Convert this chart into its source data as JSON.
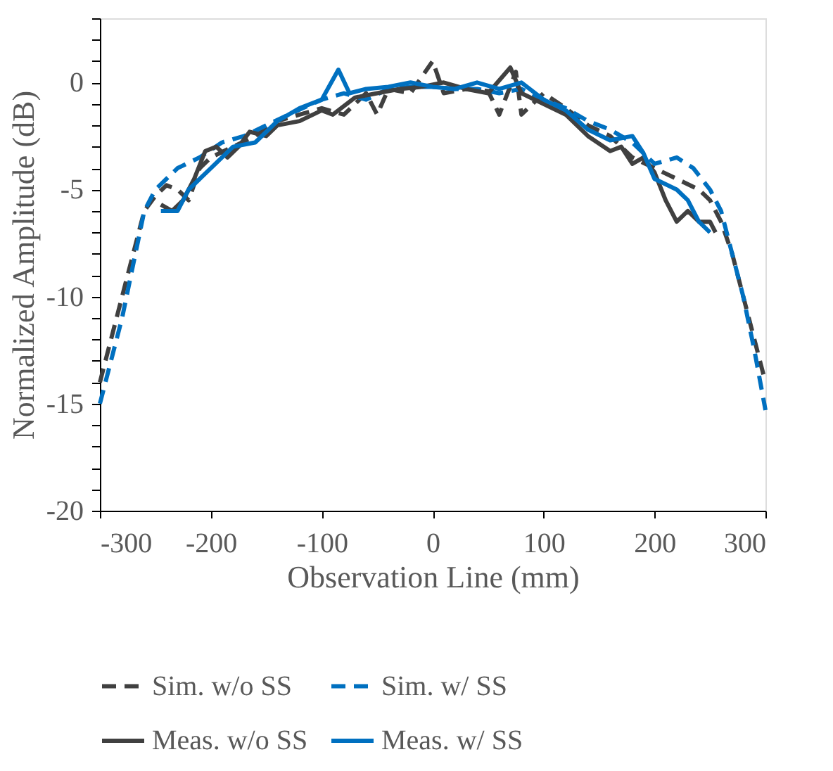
{
  "chart_data": {
    "type": "line",
    "xlabel": "Observation Line (mm)",
    "ylabel": "Normalized Amplitude (dB)",
    "xlim": [
      -300,
      300
    ],
    "xticks": [
      -300,
      -200,
      -100,
      0,
      100,
      200,
      300
    ],
    "ylim": [
      -20,
      3
    ],
    "yticks": [
      -20,
      {
        "value": -19,
        "label": null
      },
      {
        "value": -18,
        "label": null
      },
      {
        "value": -17,
        "label": null
      },
      {
        "value": -16,
        "label": null
      },
      -15,
      {
        "value": -14,
        "label": null
      },
      {
        "value": -13,
        "label": null
      },
      {
        "value": -12,
        "label": null
      },
      {
        "value": -11,
        "label": null
      },
      -10,
      {
        "value": -9,
        "label": null
      },
      {
        "value": -8,
        "label": null
      },
      {
        "value": -7,
        "label": null
      },
      {
        "value": -6,
        "label": null
      },
      -5,
      {
        "value": -4,
        "label": null
      },
      {
        "value": -3,
        "label": null
      },
      {
        "value": -2,
        "label": null
      },
      {
        "value": -1,
        "label": null
      },
      0,
      {
        "value": 1,
        "label": null
      },
      {
        "value": 2,
        "label": null
      },
      {
        "value": 3,
        "label": null
      }
    ],
    "grid": false,
    "legend": "bottom",
    "series": [
      {
        "name": "Sim. w/o SS",
        "color": "#404040",
        "line_style": "dashed",
        "x": [
          -300,
          -290,
          -280,
          -270,
          -260,
          -250,
          -240,
          -230,
          -220,
          -210,
          -200,
          -180,
          -160,
          -140,
          -120,
          -100,
          -80,
          -60,
          -50,
          -40,
          -20,
          0,
          10,
          30,
          50,
          60,
          75,
          80,
          100,
          120,
          140,
          160,
          180,
          200,
          220,
          240,
          250,
          260,
          270,
          280,
          290,
          300
        ],
        "values": [
          -14,
          -12,
          -10,
          -8,
          -6,
          -5.3,
          -4.8,
          -5,
          -5.5,
          -4,
          -3.5,
          -3,
          -2.5,
          -1.8,
          -1.5,
          -1.2,
          -1.5,
          -0.5,
          -1.5,
          -0.3,
          -0.5,
          1,
          -0.5,
          -0.3,
          -0.4,
          -1.5,
          0.5,
          -1.5,
          -0.5,
          -1.2,
          -2,
          -2.5,
          -3.5,
          -4,
          -4.5,
          -5,
          -5.5,
          -6.5,
          -8,
          -10,
          -12,
          -14
        ]
      },
      {
        "name": "Sim. w/ SS",
        "color": "#0070c0",
        "line_style": "dashed",
        "x": [
          -300,
          -290,
          -280,
          -270,
          -260,
          -250,
          -240,
          -230,
          -210,
          -190,
          -170,
          -150,
          -130,
          -100,
          -80,
          -60,
          -40,
          -20,
          0,
          20,
          40,
          60,
          80,
          100,
          120,
          140,
          160,
          180,
          200,
          220,
          235,
          250,
          260,
          270,
          280,
          290,
          300
        ],
        "values": [
          -15,
          -13,
          -11,
          -8.5,
          -6,
          -5,
          -4.5,
          -4,
          -3.5,
          -2.8,
          -2.5,
          -2,
          -1.5,
          -0.8,
          -0.5,
          -0.8,
          -0.3,
          -0.2,
          -0.2,
          -0.3,
          -0.3,
          -0.5,
          -0.3,
          -0.8,
          -1.2,
          -1.8,
          -2.2,
          -2.8,
          -3.8,
          -3.5,
          -4,
          -5,
          -6,
          -8,
          -10,
          -12.5,
          -15.3
        ]
      },
      {
        "name": "Meas. w/o SS",
        "color": "#404040",
        "line_style": "solid",
        "x": [
          -245,
          -235,
          -225,
          -215,
          -205,
          -195,
          -185,
          -175,
          -165,
          -150,
          -140,
          -120,
          -100,
          -90,
          -70,
          -50,
          -30,
          -10,
          10,
          30,
          50,
          70,
          80,
          100,
          120,
          140,
          160,
          170,
          180,
          190,
          200,
          210,
          220,
          230,
          240,
          250,
          255
        ],
        "values": [
          -5.7,
          -6,
          -5.5,
          -4.5,
          -3.2,
          -3,
          -3.5,
          -3,
          -2.3,
          -2.5,
          -2,
          -1.8,
          -1.3,
          -1.5,
          -0.7,
          -0.5,
          -0.3,
          -0.2,
          0,
          -0.3,
          -0.5,
          0.7,
          -0.5,
          -1,
          -1.5,
          -2.5,
          -3.2,
          -3,
          -3.8,
          -3.5,
          -4.2,
          -5.5,
          -6.5,
          -6,
          -6.5,
          -6.5,
          -7
        ]
      },
      {
        "name": "Meas. w/ SS",
        "color": "#0070c0",
        "line_style": "solid",
        "x": [
          -245,
          -230,
          -220,
          -210,
          -200,
          -180,
          -160,
          -140,
          -120,
          -100,
          -85,
          -75,
          -60,
          -40,
          -20,
          0,
          20,
          40,
          60,
          80,
          100,
          120,
          140,
          160,
          180,
          190,
          200,
          220,
          230,
          240,
          250
        ],
        "values": [
          -6,
          -6,
          -5,
          -4.5,
          -4,
          -3,
          -2.8,
          -1.8,
          -1.2,
          -0.8,
          0.6,
          -0.5,
          -0.3,
          -0.2,
          0,
          -0.2,
          -0.3,
          0,
          -0.3,
          0,
          -0.8,
          -1.3,
          -2.2,
          -2.7,
          -2.5,
          -3.3,
          -4.5,
          -5,
          -5.5,
          -6.5,
          -7
        ]
      }
    ]
  }
}
